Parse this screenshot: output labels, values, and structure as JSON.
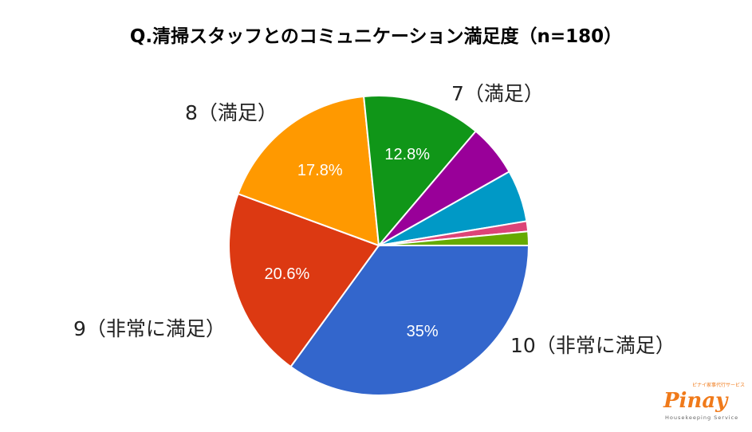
{
  "chart_data": {
    "type": "pie",
    "title": "Q.清掃スタッフとのコミュニケーション満足度（n=180）",
    "slices": [
      {
        "label": "10（非常に満足）",
        "percent": 35,
        "data_label": "35%",
        "color": "#3366cc"
      },
      {
        "label": "9（非常に満足）",
        "percent": 20.6,
        "data_label": "20.6%",
        "color": "#dc3912"
      },
      {
        "label": "8（満足）",
        "percent": 17.8,
        "data_label": "17.8%",
        "color": "#ff9900"
      },
      {
        "label": "7（満足）",
        "percent": 12.8,
        "data_label": "12.8%",
        "color": "#109618"
      },
      {
        "label": "",
        "percent": 5.6,
        "data_label": "",
        "color": "#990099"
      },
      {
        "label": "",
        "percent": 5.6,
        "data_label": "",
        "color": "#0099c6"
      },
      {
        "label": "",
        "percent": 1.1,
        "data_label": "",
        "color": "#dd4477"
      },
      {
        "label": "",
        "percent": 1.5,
        "data_label": "",
        "color": "#66aa00"
      }
    ],
    "start": "3 o'clock, clockwise"
  },
  "logo": {
    "brand": "Pinay",
    "tagline": "ピナイ家事代行サービス",
    "subtitle": "Housekeeping Service"
  }
}
